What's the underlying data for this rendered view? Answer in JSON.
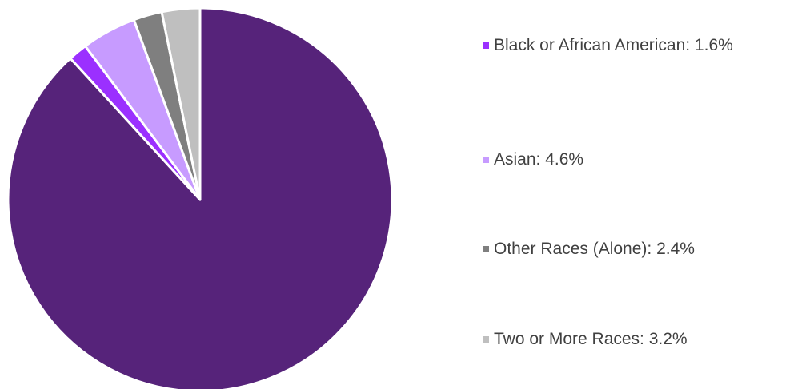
{
  "chart_data": {
    "type": "pie",
    "title": "",
    "slices": [
      {
        "category": "",
        "value": 88.2,
        "color": "#56237a",
        "in_legend": false
      },
      {
        "category": "Black or African American",
        "value": 1.6,
        "label": "Black or African American: 1.6%",
        "color": "#9b30ff",
        "in_legend": true
      },
      {
        "category": "Asian",
        "value": 4.6,
        "label": "Asian: 4.6%",
        "color": "#c79bff",
        "in_legend": true
      },
      {
        "category": "Other Races (Alone)",
        "value": 2.4,
        "label": "Other Races (Alone): 2.4%",
        "color": "#7f7f7f",
        "in_legend": true
      },
      {
        "category": "Two or More Races",
        "value": 3.2,
        "label": "Two or More Races: 3.2%",
        "color": "#bfbfbf",
        "in_legend": true
      }
    ],
    "legend_position": "right",
    "start_angle": "12 o'clock",
    "direction": "clockwise",
    "slice_border_color": "#ffffff"
  },
  "legend": [
    {
      "label": "Black or African American: 1.6%",
      "color": "#9b30ff"
    },
    {
      "label": "Asian: 4.6%",
      "color": "#c79bff"
    },
    {
      "label": "Other Races (Alone): 2.4%",
      "color": "#7f7f7f"
    },
    {
      "label": "Two or More Races: 3.2%",
      "color": "#bfbfbf"
    }
  ]
}
